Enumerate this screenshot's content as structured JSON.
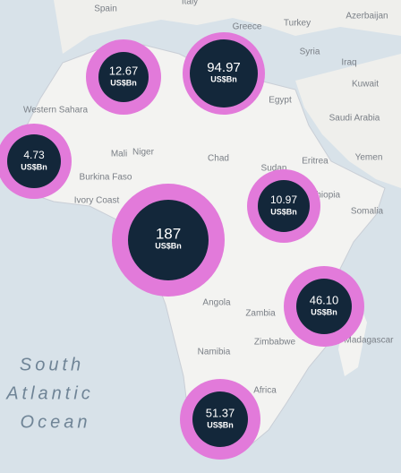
{
  "map": {
    "places": [
      "Spain",
      "Italy",
      "Greece",
      "Turkey",
      "Azerbaijan",
      "Syria",
      "Iraq",
      "Kuwait",
      "Saudi Arabia",
      "Yemen",
      "Egypt",
      "Western Sahara",
      "Mali",
      "Niger",
      "Chad",
      "Sudan",
      "Eritrea",
      "Burkina Faso",
      "Ivory Coast",
      "Ethiopia",
      "Somalia",
      "Angola",
      "Zambia",
      "Zimbabwe",
      "Namibia",
      "Madagascar",
      "Africa"
    ],
    "ocean": [
      "South",
      "Atlantic",
      "Ocean"
    ],
    "bubbles": [
      {
        "value": "12.67",
        "unit": "US$Bn"
      },
      {
        "value": "94.97",
        "unit": "US$Bn"
      },
      {
        "value": "4.73",
        "unit": "US$Bn"
      },
      {
        "value": "187",
        "unit": "US$Bn"
      },
      {
        "value": "10.97",
        "unit": "US$Bn"
      },
      {
        "value": "46.10",
        "unit": "US$Bn"
      },
      {
        "value": "51.37",
        "unit": "US$Bn"
      }
    ]
  }
}
